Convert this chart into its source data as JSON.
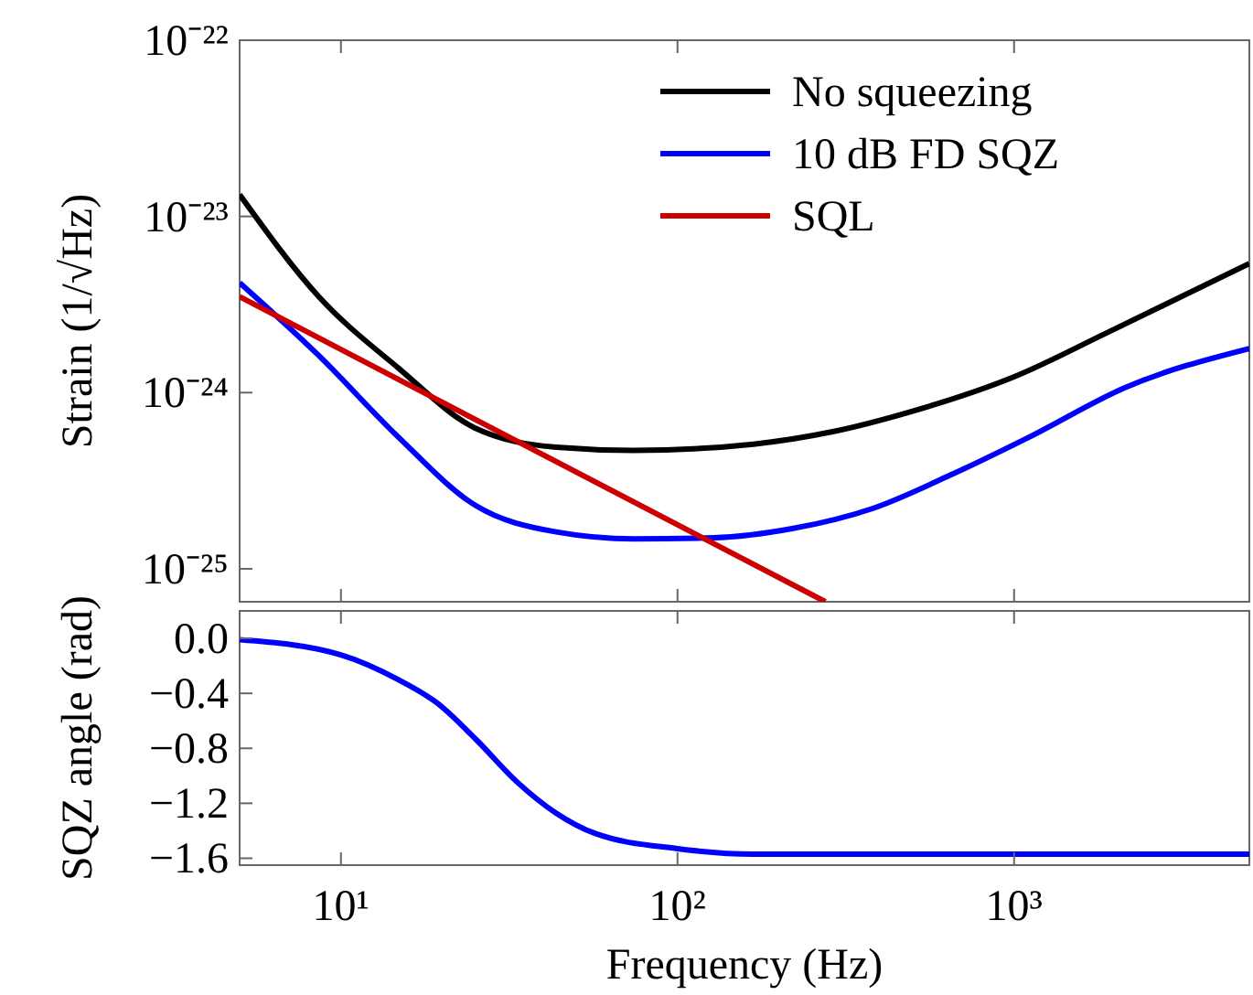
{
  "chart_data": [
    {
      "type": "line",
      "ylabel": "Strain (1/√Hz)",
      "log": "xy",
      "xlim": [
        5,
        5000
      ],
      "ylim": [
        6.5e-26,
        1e-22
      ],
      "xticks": [
        {
          "value": 10,
          "label": null
        },
        {
          "value": 100,
          "label": null
        },
        {
          "value": 1000,
          "label": null
        }
      ],
      "yticks": [
        {
          "value": 1e-22,
          "label": "10⁻²²"
        },
        {
          "value": 1e-23,
          "label": "10⁻²³"
        },
        {
          "value": 1e-24,
          "label": "10⁻²⁴"
        },
        {
          "value": 1e-25,
          "label": "10⁻²⁵"
        }
      ],
      "tick_labels": "y",
      "legend": "top right",
      "grid": false,
      "series": [
        {
          "name": "No squeezing",
          "color": "#000000",
          "x": [
            5,
            8.6,
            14.8,
            25,
            43.6,
            74,
            168,
            289,
            494,
            1000,
            1900,
            5000
          ],
          "values": [
            1.33e-23,
            3.5e-24,
            1.38e-24,
            6.3e-25,
            4.9e-25,
            4.7e-25,
            5.1e-25,
            6e-25,
            7.8e-25,
            1.23e-24,
            2.2e-24,
            5.4e-24
          ]
        },
        {
          "name": "10 dB FD SQZ",
          "color": "#0000ff",
          "x": [
            5,
            8.6,
            14.8,
            25,
            43.6,
            74,
            128,
            219,
            380,
            646,
            1110,
            2140,
            5000
          ],
          "values": [
            4.2e-24,
            1.62e-24,
            5.6e-25,
            2.3e-25,
            1.62e-25,
            1.48e-25,
            1.5e-25,
            1.69e-25,
            2.2e-25,
            3.4e-25,
            5.6e-25,
            1.07e-24,
            1.78e-24
          ]
        },
        {
          "name": "SQL",
          "color": "#cc0000",
          "x": [
            5,
            275
          ],
          "values": [
            3.5e-24,
            6.5e-26
          ]
        }
      ]
    },
    {
      "type": "line",
      "xlabel": "Frequency (Hz)",
      "ylabel": "SQZ angle (rad)",
      "log": "x",
      "xlim": [
        5,
        5000
      ],
      "ylim": [
        -1.65,
        0.2
      ],
      "xticks": [
        {
          "value": 10,
          "label": "10¹"
        },
        {
          "value": 100,
          "label": "10²"
        },
        {
          "value": 1000,
          "label": "10³"
        }
      ],
      "yticks": [
        {
          "value": 0,
          "label": "0.0"
        },
        {
          "value": -0.4,
          "label": "−0.4"
        },
        {
          "value": -0.8,
          "label": "−0.8"
        },
        {
          "value": -1.2,
          "label": "−1.2"
        },
        {
          "value": -1.6,
          "label": "−1.6"
        }
      ],
      "grid": false,
      "series": [
        {
          "color": "#0000ff",
          "x": [
            5,
            10,
            14.8,
            19.3,
            25.3,
            33.2,
            43.5,
            57,
            100,
            168,
            380,
            5000
          ],
          "values": [
            -0.01,
            -0.12,
            -0.3,
            -0.47,
            -0.74,
            -1.04,
            -1.27,
            -1.42,
            -1.53,
            -1.57,
            -1.57,
            -1.57
          ]
        }
      ]
    }
  ]
}
